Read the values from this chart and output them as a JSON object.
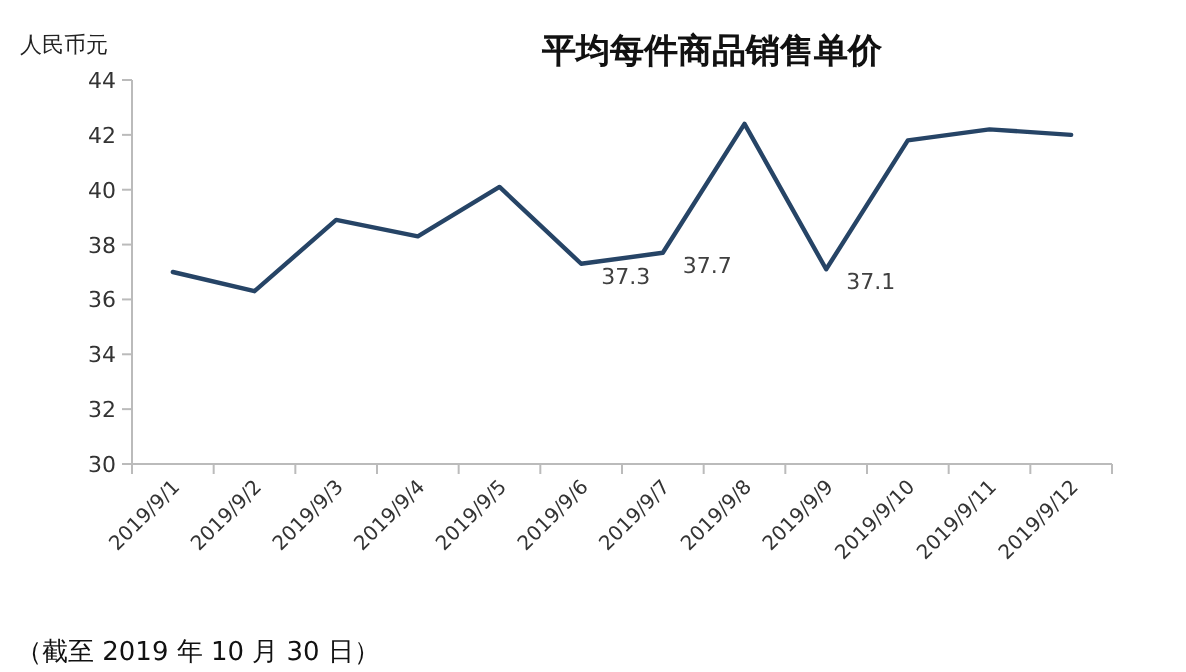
{
  "chart_data": {
    "type": "line",
    "title": "平均每件商品销售单价",
    "ylabel": "人民币元",
    "categories": [
      "2019/9/1",
      "2019/9/2",
      "2019/9/3",
      "2019/9/4",
      "2019/9/5",
      "2019/9/6",
      "2019/9/7",
      "2019/9/8",
      "2019/9/9",
      "2019/9/10",
      "2019/9/11",
      "2019/9/12"
    ],
    "series": [
      {
        "color": "#264466",
        "values": [
          37.0,
          36.3,
          38.9,
          38.3,
          40.1,
          37.3,
          37.7,
          42.4,
          37.1,
          41.8,
          42.2,
          42.0
        ],
        "value_labels": [
          null,
          null,
          null,
          null,
          null,
          "37.3",
          "37.7",
          null,
          "37.1",
          null,
          null,
          null
        ]
      }
    ],
    "ylim": [
      30,
      44
    ],
    "yticks": [
      30,
      32,
      34,
      36,
      38,
      40,
      42,
      44
    ],
    "marker": "none",
    "line_style": "solid",
    "annotations": [
      "（截至 2019 年 10 月 30 日）"
    ]
  }
}
